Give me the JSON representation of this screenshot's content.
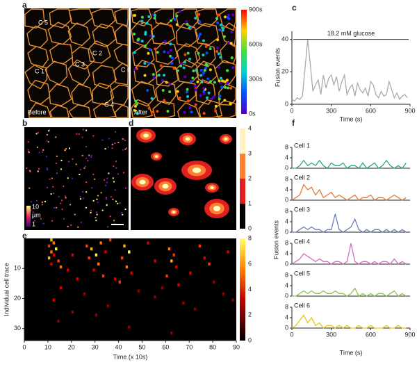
{
  "figure": {
    "panel_labels": [
      "a",
      "b",
      "c",
      "d",
      "e",
      "f"
    ],
    "a": {
      "cell_labels": [
        "C 5",
        "C 2",
        "C 3",
        "C 1",
        "C 6",
        "C 4"
      ],
      "before": "Before",
      "after": "After",
      "colorbar": {
        "lim": [
          0,
          900
        ],
        "ticks": [
          {
            "value": 900,
            "label": "900s"
          },
          {
            "value": 600,
            "label": "600s"
          },
          {
            "value": 300,
            "label": "300s"
          },
          {
            "value": 0,
            "label": "0s"
          }
        ]
      }
    },
    "b": {
      "colorbar": {
        "labels": [
          "10",
          "µm",
          "1"
        ]
      }
    },
    "d": {
      "colorbar": {
        "lim": [
          0,
          4
        ],
        "ticks": [
          0,
          1,
          2,
          3,
          4
        ]
      }
    },
    "e": {
      "colorbar": {
        "lim": [
          0,
          8
        ],
        "ticks": [
          0,
          2,
          4,
          6,
          8
        ]
      }
    },
    "f": {
      "xlabel": "Time (s)",
      "ylabel": "Fusion events"
    }
  },
  "chart_data": [
    {
      "type": "line",
      "ylabel": "Fusion events",
      "xlabel": "Time (s)",
      "annotation": "18.2 mM glucose",
      "annotation_level": 40,
      "color": "#aaaaaa",
      "x": [
        0,
        20,
        40,
        60,
        80,
        100,
        120,
        140,
        160,
        180,
        200,
        220,
        240,
        260,
        280,
        300,
        320,
        340,
        360,
        380,
        400,
        420,
        440,
        460,
        480,
        500,
        520,
        540,
        560,
        580,
        600,
        620,
        640,
        660,
        680,
        700,
        720,
        740,
        760,
        780,
        800,
        820,
        840,
        860,
        880
      ],
      "values": [
        3,
        2,
        4,
        3,
        5,
        22,
        40,
        25,
        8,
        12,
        15,
        6,
        18,
        10,
        16,
        18,
        12,
        17,
        8,
        14,
        18,
        6,
        10,
        12,
        5,
        13,
        9,
        7,
        10,
        5,
        14,
        12,
        6,
        4,
        8,
        5,
        6,
        14,
        9,
        4,
        7,
        3,
        5,
        6,
        4
      ],
      "xlim": [
        0,
        900
      ],
      "xticks": [
        0,
        300,
        600,
        900
      ],
      "ylim": [
        0,
        45
      ],
      "yticks": [
        0,
        20,
        40
      ]
    },
    {
      "type": "heatmap",
      "ylabel": "Individual cell trace",
      "xlabel": "Time (x 10s)",
      "xlim": [
        0,
        90
      ],
      "xticks": [
        0,
        10,
        20,
        30,
        40,
        50,
        60,
        70,
        80,
        90
      ],
      "ylim": [
        0,
        34
      ],
      "yticks": [
        10,
        20,
        30
      ],
      "cells": [
        [
          0,
          11,
          6
        ],
        [
          1,
          12,
          5
        ],
        [
          2,
          10,
          4
        ],
        [
          3,
          13,
          7
        ],
        [
          4,
          11,
          5
        ],
        [
          5,
          12,
          3
        ],
        [
          6,
          10,
          6
        ],
        [
          7,
          14,
          4
        ],
        [
          8,
          11,
          3
        ],
        [
          9,
          15,
          5
        ],
        [
          2,
          26,
          4
        ],
        [
          3,
          28,
          6
        ],
        [
          5,
          30,
          7
        ],
        [
          6,
          27,
          4
        ],
        [
          8,
          31,
          5
        ],
        [
          10,
          29,
          3
        ],
        [
          12,
          33,
          4
        ],
        [
          1,
          32,
          5
        ],
        [
          4,
          34,
          3
        ],
        [
          2,
          42,
          6
        ],
        [
          4,
          44,
          8
        ],
        [
          6,
          41,
          4
        ],
        [
          9,
          43,
          5
        ],
        [
          11,
          45,
          3
        ],
        [
          14,
          40,
          4
        ],
        [
          3,
          61,
          5
        ],
        [
          5,
          63,
          4
        ],
        [
          7,
          62,
          6
        ],
        [
          9,
          64,
          3
        ],
        [
          12,
          60,
          4
        ],
        [
          15,
          65,
          3
        ],
        [
          2,
          74,
          4
        ],
        [
          6,
          76,
          3
        ],
        [
          8,
          78,
          4
        ],
        [
          4,
          86,
          3
        ],
        [
          10,
          18,
          3
        ],
        [
          13,
          22,
          3
        ],
        [
          16,
          15,
          3
        ],
        [
          18,
          25,
          2
        ],
        [
          20,
          12,
          3
        ],
        [
          22,
          35,
          2
        ],
        [
          24,
          20,
          2
        ],
        [
          17,
          48,
          2
        ],
        [
          19,
          55,
          2
        ],
        [
          21,
          67,
          2
        ],
        [
          23,
          72,
          2
        ],
        [
          25,
          30,
          2
        ],
        [
          27,
          14,
          2
        ],
        [
          29,
          44,
          2
        ],
        [
          31,
          62,
          2
        ],
        [
          14,
          80,
          2
        ],
        [
          18,
          84,
          2
        ],
        [
          1,
          52,
          3
        ],
        [
          7,
          55,
          3
        ],
        [
          11,
          70,
          3
        ],
        [
          5,
          20,
          3
        ],
        [
          0,
          36,
          4
        ],
        [
          13,
          38,
          3
        ],
        [
          16,
          58,
          2
        ],
        [
          20,
          88,
          2
        ]
      ]
    },
    {
      "type": "line",
      "name": "Cell 1",
      "color": "#2ca58d",
      "x": [
        0,
        30,
        60,
        90,
        120,
        150,
        180,
        210,
        240,
        270,
        300,
        330,
        360,
        390,
        420,
        450,
        480,
        510,
        540,
        570,
        600,
        630,
        660,
        690,
        720,
        750,
        780,
        810,
        840,
        870
      ],
      "values": [
        0,
        0,
        1,
        3,
        1,
        2,
        1,
        3,
        1,
        0,
        2,
        1,
        1,
        2,
        0,
        1,
        1,
        0,
        2,
        0,
        1,
        2,
        0,
        1,
        3,
        1,
        0,
        1,
        0,
        2
      ],
      "xlim": [
        0,
        900
      ],
      "ylim": [
        0,
        8
      ],
      "yticks": [
        0,
        4,
        8
      ]
    },
    {
      "type": "line",
      "name": "Cell 2",
      "color": "#e07b39",
      "x": [
        0,
        30,
        60,
        90,
        120,
        150,
        180,
        210,
        240,
        270,
        300,
        330,
        360,
        390,
        420,
        450,
        480,
        510,
        540,
        570,
        600,
        630,
        660,
        690,
        720,
        750,
        780,
        810,
        840,
        870
      ],
      "values": [
        0,
        1,
        2,
        6,
        4,
        5,
        2,
        4,
        1,
        2,
        3,
        1,
        2,
        1,
        0,
        1,
        2,
        0,
        1,
        1,
        2,
        0,
        1,
        1,
        0,
        1,
        2,
        1,
        0,
        1
      ],
      "xlim": [
        0,
        900
      ],
      "ylim": [
        0,
        8
      ],
      "yticks": [
        0,
        4,
        8
      ]
    },
    {
      "type": "line",
      "name": "Cell 3",
      "color": "#6b7fb8",
      "x": [
        0,
        30,
        60,
        90,
        120,
        150,
        180,
        210,
        240,
        270,
        300,
        330,
        360,
        390,
        420,
        450,
        480,
        510,
        540,
        570,
        600,
        630,
        660,
        690,
        720,
        750,
        780,
        810,
        840,
        870
      ],
      "values": [
        0,
        0,
        1,
        2,
        1,
        2,
        1,
        1,
        0,
        1,
        1,
        7,
        1,
        0,
        1,
        2,
        5,
        1,
        0,
        1,
        0,
        1,
        1,
        0,
        1,
        0,
        1,
        0,
        1,
        0
      ],
      "xlim": [
        0,
        900
      ],
      "ylim": [
        0,
        8
      ],
      "yticks": [
        0,
        4,
        8
      ]
    },
    {
      "type": "line",
      "name": "Cell 4",
      "color": "#d06cc0",
      "x": [
        0,
        30,
        60,
        90,
        120,
        150,
        180,
        210,
        240,
        270,
        300,
        330,
        360,
        390,
        420,
        450,
        480,
        510,
        540,
        570,
        600,
        630,
        660,
        690,
        720,
        750,
        780,
        810,
        840,
        870
      ],
      "values": [
        0,
        1,
        2,
        4,
        3,
        2,
        1,
        2,
        1,
        1,
        0,
        1,
        1,
        0,
        1,
        8,
        1,
        0,
        1,
        1,
        0,
        1,
        0,
        1,
        1,
        0,
        2,
        0,
        1,
        0
      ],
      "xlim": [
        0,
        900
      ],
      "ylim": [
        0,
        8
      ],
      "yticks": [
        0,
        4,
        8
      ]
    },
    {
      "type": "line",
      "name": "Cell 5",
      "color": "#8bc34a",
      "x": [
        0,
        30,
        60,
        90,
        120,
        150,
        180,
        210,
        240,
        270,
        300,
        330,
        360,
        390,
        420,
        450,
        480,
        510,
        540,
        570,
        600,
        630,
        660,
        690,
        720,
        750,
        780,
        810,
        840,
        870
      ],
      "values": [
        0,
        0,
        1,
        2,
        1,
        2,
        1,
        1,
        2,
        1,
        1,
        2,
        1,
        1,
        0,
        1,
        3,
        0,
        1,
        0,
        1,
        0,
        1,
        1,
        0,
        1,
        2,
        0,
        1,
        0
      ],
      "xlim": [
        0,
        900
      ],
      "ylim": [
        0,
        8
      ],
      "yticks": [
        0,
        4,
        8
      ]
    },
    {
      "type": "line",
      "name": "Cell 6",
      "color": "#e6c619",
      "x": [
        0,
        30,
        60,
        90,
        120,
        150,
        180,
        210,
        240,
        270,
        300,
        330,
        360,
        390,
        420,
        450,
        480,
        510,
        540,
        570,
        600,
        630,
        660,
        690,
        720,
        750,
        780,
        810,
        840,
        870
      ],
      "values": [
        0,
        1,
        3,
        5,
        2,
        4,
        1,
        2,
        0,
        1,
        1,
        0,
        1,
        0,
        1,
        0,
        0,
        1,
        0,
        0,
        1,
        0,
        0,
        0,
        1,
        0,
        0,
        1,
        0,
        0
      ],
      "xlim": [
        0,
        900
      ],
      "ylim": [
        0,
        8
      ],
      "yticks": [
        0,
        4,
        8
      ],
      "xticks": [
        0,
        300,
        600,
        900
      ]
    }
  ]
}
